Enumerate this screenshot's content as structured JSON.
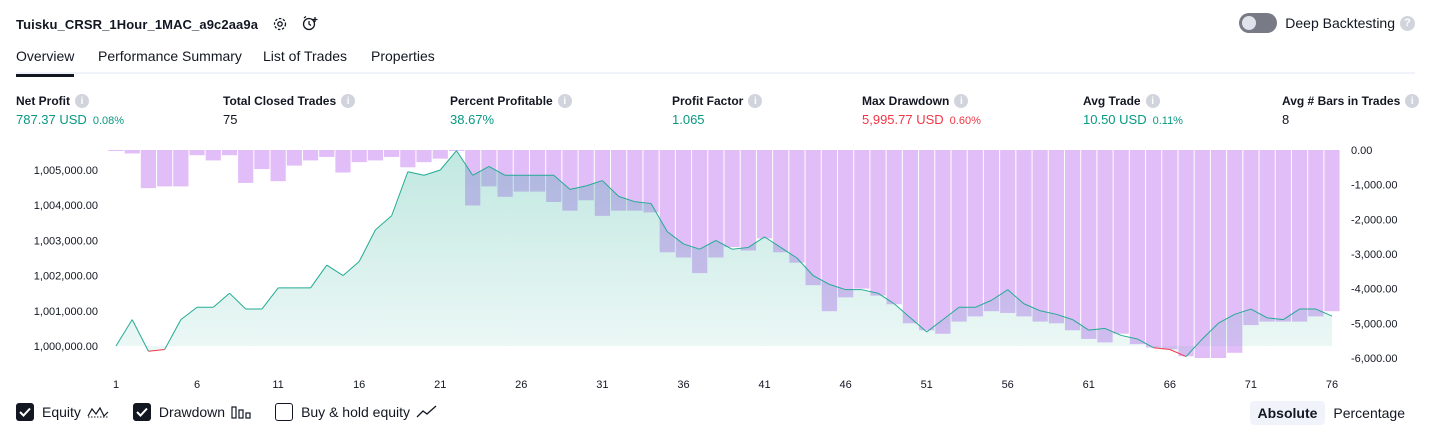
{
  "header": {
    "title": "Tuisku_CRSR_1Hour_1MAC_a9c2aa9a",
    "deep_backtesting_label": "Deep Backtesting",
    "deep_backtesting_on": false
  },
  "tabs": [
    {
      "label": "Overview",
      "active": true
    },
    {
      "label": "Performance Summary",
      "active": false
    },
    {
      "label": "List of Trades",
      "active": false
    },
    {
      "label": "Properties",
      "active": false
    }
  ],
  "metrics": {
    "net_profit": {
      "label": "Net Profit",
      "value": "787.37 USD",
      "pct": "0.08%"
    },
    "total_closed_trades": {
      "label": "Total Closed Trades",
      "value": "75"
    },
    "percent_profitable": {
      "label": "Percent Profitable",
      "value": "38.67%"
    },
    "profit_factor": {
      "label": "Profit Factor",
      "value": "1.065"
    },
    "max_drawdown": {
      "label": "Max Drawdown",
      "value": "5,995.77 USD",
      "pct": "0.60%"
    },
    "avg_trade": {
      "label": "Avg Trade",
      "value": "10.50 USD",
      "pct": "0.11%"
    },
    "avg_bars": {
      "label": "Avg # Bars in Trades",
      "value": "8"
    }
  },
  "legend": {
    "equity": {
      "label": "Equity",
      "checked": true
    },
    "drawdown": {
      "label": "Drawdown",
      "checked": true
    },
    "buy_hold": {
      "label": "Buy & hold equity",
      "checked": false
    }
  },
  "modes": {
    "absolute": "Absolute",
    "percentage": "Percentage",
    "active": "absolute"
  },
  "colors": {
    "equity_line": "#22ab94",
    "equity_loss_line": "#f23645",
    "drawdown_bar": "#ce93f5",
    "positive": "#089981",
    "negative": "#f23645"
  },
  "chart_data": {
    "type": "area",
    "x_ticks": [
      "1",
      "6",
      "11",
      "16",
      "21",
      "26",
      "31",
      "36",
      "41",
      "46",
      "51",
      "56",
      "61",
      "66",
      "71",
      "76"
    ],
    "y_left_ticks": [
      "1,000,000.00",
      "1,001,000.00",
      "1,002,000.00",
      "1,003,000.00",
      "1,004,000.00",
      "1,005,000.00"
    ],
    "y_right_ticks": [
      "0.00",
      "-1,000.00",
      "-2,000.00",
      "-3,000.00",
      "-4,000.00",
      "-5,000.00",
      "-6,000.00"
    ],
    "ylim_left": [
      999600,
      1005600
    ],
    "ylim_right": [
      -6250,
      0
    ],
    "xlim": [
      1,
      76
    ],
    "series": [
      {
        "name": "Equity",
        "x": [
          1,
          2,
          3,
          4,
          5,
          6,
          7,
          8,
          9,
          10,
          11,
          12,
          13,
          14,
          15,
          16,
          17,
          18,
          19,
          20,
          21,
          22,
          23,
          24,
          25,
          26,
          27,
          28,
          29,
          30,
          31,
          32,
          33,
          34,
          35,
          36,
          37,
          38,
          39,
          40,
          41,
          42,
          43,
          44,
          45,
          46,
          47,
          48,
          49,
          50,
          51,
          52,
          53,
          54,
          55,
          56,
          57,
          58,
          59,
          60,
          61,
          62,
          63,
          64,
          65,
          66,
          67,
          68,
          69,
          70,
          71,
          72,
          73,
          74,
          75,
          76
        ],
        "values": [
          1000000,
          1000750,
          999850,
          999900,
          1000750,
          1001100,
          1001100,
          1001500,
          1001050,
          1001050,
          1001650,
          1001650,
          1001650,
          1002300,
          1002000,
          1002400,
          1003300,
          1003700,
          1004950,
          1004850,
          1005000,
          1005550,
          1004850,
          1005100,
          1004850,
          1004850,
          1004850,
          1004850,
          1004450,
          1004550,
          1004700,
          1004250,
          1004100,
          1004050,
          1003250,
          1002900,
          1002750,
          1003000,
          1002750,
          1002800,
          1003100,
          1002800,
          1002500,
          1002000,
          1001750,
          1001600,
          1001600,
          1001500,
          1001200,
          1000800,
          1000400,
          1000750,
          1001100,
          1001100,
          1001300,
          1001600,
          1001200,
          1001000,
          1000900,
          1000750,
          1000450,
          1000500,
          1000300,
          1000200,
          999950,
          999900,
          999700,
          1000200,
          1000650,
          1000900,
          1001050,
          1000800,
          1000750,
          1001050,
          1001050,
          1000850
        ]
      },
      {
        "name": "Drawdown",
        "x": [
          1,
          2,
          3,
          4,
          5,
          6,
          7,
          8,
          9,
          10,
          11,
          12,
          13,
          14,
          15,
          16,
          17,
          18,
          19,
          20,
          21,
          22,
          23,
          24,
          25,
          26,
          27,
          28,
          29,
          30,
          31,
          32,
          33,
          34,
          35,
          36,
          37,
          38,
          39,
          40,
          41,
          42,
          43,
          44,
          45,
          46,
          47,
          48,
          49,
          50,
          51,
          52,
          53,
          54,
          55,
          56,
          57,
          58,
          59,
          60,
          61,
          62,
          63,
          64,
          65,
          66,
          67,
          68,
          69,
          70,
          71,
          72,
          73,
          74,
          75,
          76
        ],
        "values": [
          -20,
          -100,
          -1100,
          -1050,
          -1050,
          -150,
          -300,
          -150,
          -950,
          -550,
          -900,
          -450,
          -300,
          -200,
          -650,
          -350,
          -300,
          -200,
          -500,
          -350,
          -250,
          0,
          -1600,
          -1050,
          -1350,
          -1200,
          -1200,
          -1500,
          -1750,
          -1450,
          -1900,
          -1750,
          -1750,
          -1800,
          -2950,
          -3100,
          -3550,
          -3100,
          -2800,
          -2900,
          -2550,
          -2950,
          -3250,
          -3900,
          -4650,
          -4250,
          -4000,
          -4200,
          -4450,
          -5000,
          -5200,
          -5300,
          -4950,
          -4800,
          -4650,
          -4700,
          -4800,
          -4950,
          -5000,
          -5200,
          -5450,
          -5550,
          -5300,
          -5600,
          -5700,
          -5750,
          -5950,
          -6000,
          -6000,
          -5850,
          -5050,
          -4950,
          -4950,
          -4950,
          -4800,
          -4650
        ]
      }
    ]
  }
}
